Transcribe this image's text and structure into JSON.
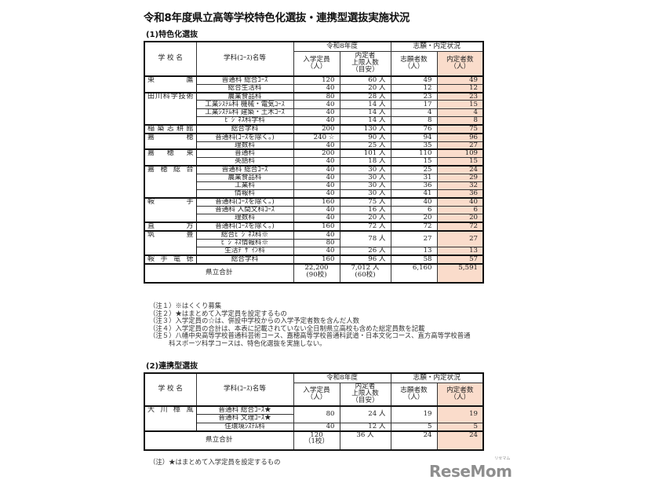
{
  "title": "令和8年度県立高等学校特色化選抜・連携型選抜実施状況",
  "colors": {
    "accepted_bg": "#fadccb",
    "logo": "#8e8e8e"
  },
  "headers": {
    "school": "学 校 名",
    "dept": "学科(ｺｰｽ)名等",
    "group_year": "令和8年度",
    "group_status": "志願・内定状況",
    "capacity": "入学定員\n（人）",
    "limit": "内定者\n上限人数\n（目安）",
    "applicants": "志願者数\n（人）",
    "accepted": "内定者数\n（人）"
  },
  "section1": {
    "heading": "(1)特色化選抜",
    "schools": [
      {
        "name": "東鷹",
        "rows": [
          {
            "dept": "普通科 総合ｺｰｽ",
            "capacity": "120",
            "limit": "60 人",
            "applicants": "49",
            "accepted": "49"
          },
          {
            "dept": "総合生活科",
            "capacity": "40",
            "limit": "20 人",
            "applicants": "12",
            "accepted": "12"
          }
        ]
      },
      {
        "name": "田川科学技術",
        "rows": [
          {
            "dept": "農業食品科",
            "capacity": "80",
            "limit": "28 人",
            "applicants": "23",
            "accepted": "23"
          },
          {
            "dept": "工業ｼｽﾃﾑ科 機械・電気ｺｰｽ",
            "capacity": "40",
            "limit": "14 人",
            "applicants": "17",
            "accepted": "15"
          },
          {
            "dept": "工業ｼｽﾃﾑ科 建築・土木ｺｰｽ",
            "capacity": "40",
            "limit": "14 人",
            "applicants": "4",
            "accepted": "4"
          },
          {
            "dept": "ﾋﾞｼﾞﾈｽ科学科",
            "capacity": "40",
            "limit": "14 人",
            "applicants": "8",
            "accepted": "8"
          }
        ]
      },
      {
        "name": "稲築志耕館",
        "rows": [
          {
            "dept": "総合学科",
            "capacity": "200",
            "limit": "130 人",
            "applicants": "76",
            "accepted": "75"
          }
        ]
      },
      {
        "name": "嘉穂",
        "rows": [
          {
            "dept": "普通科(ｺｰｽを除く。)",
            "capacity": "240 ☆",
            "limit": "90 人",
            "applicants": "94",
            "accepted": "96"
          },
          {
            "dept": "理数科",
            "capacity": "40",
            "limit": "25 人",
            "applicants": "35",
            "accepted": "27"
          }
        ]
      },
      {
        "name": "嘉穂東",
        "rows": [
          {
            "dept": "普通科",
            "capacity": "200",
            "limit": "101 人",
            "applicants": "110",
            "accepted": "109"
          },
          {
            "dept": "英語科",
            "capacity": "40",
            "limit": "18 人",
            "applicants": "15",
            "accepted": "15"
          }
        ]
      },
      {
        "name": "嘉穂総合",
        "rows": [
          {
            "dept": "普通科 総合ｺｰｽ",
            "capacity": "40",
            "limit": "30 人",
            "applicants": "25",
            "accepted": "24"
          },
          {
            "dept": "農業食品科",
            "capacity": "40",
            "limit": "30 人",
            "applicants": "31",
            "accepted": "29"
          },
          {
            "dept": "工業科",
            "capacity": "40",
            "limit": "30 人",
            "applicants": "36",
            "accepted": "32"
          },
          {
            "dept": "情報科",
            "capacity": "40",
            "limit": "30 人",
            "applicants": "41",
            "accepted": "36"
          }
        ]
      },
      {
        "name": "鞍手",
        "rows": [
          {
            "dept": "普通科(ｺｰｽを除く。)",
            "capacity": "160",
            "limit": "75 人",
            "applicants": "40",
            "accepted": "40"
          },
          {
            "dept": "普通科 人間文科ｺｰｽ",
            "capacity": "40",
            "limit": "16 人",
            "applicants": "6",
            "accepted": "6"
          },
          {
            "dept": "理数科",
            "capacity": "40",
            "limit": "20 人",
            "applicants": "20",
            "accepted": "20"
          }
        ]
      },
      {
        "name": "直方",
        "rows": [
          {
            "dept": "普通科(ｺｰｽを除く。)",
            "capacity": "160",
            "limit": "72 人",
            "applicants": "72",
            "accepted": "72"
          }
        ]
      },
      {
        "name": "筑豊",
        "rows": [
          {
            "dept": "総合ﾋﾞｼﾞﾈｽ科※",
            "capacity": "40",
            "limit": "78 人",
            "applicants": "27",
            "accepted": "27"
          },
          {
            "dept": "ﾋﾞｼﾞﾈｽ情報科※",
            "capacity": "80",
            "limit": null,
            "applicants": null,
            "accepted": null
          },
          {
            "dept": "生活ﾃﾞｻﾞｲﾝ科",
            "capacity": "40",
            "limit": "26 人",
            "applicants": "13",
            "accepted": "13"
          }
        ]
      },
      {
        "name": "鞍手竜徳",
        "rows": [
          {
            "dept": "総合学科",
            "capacity": "160",
            "limit": "96 人",
            "applicants": "58",
            "accepted": "57"
          }
        ]
      }
    ],
    "total": {
      "label": "県立合計",
      "capacity": "22,200\n(90校)",
      "limit": "7,012 人\n(60校)",
      "applicants": "6,160",
      "accepted": "5,591"
    },
    "notes": [
      "（注１）※はくくり募集",
      "（注２）★はまとめて入学定員を設定するもの",
      "（注３）入学定員の☆は、併設中学校からの入学予定者数を含んだ人数",
      "（注４）入学定員の合計は、本表に記載されていない全日制県立高校も含めた総定員数を記載",
      "（注５）八幡中央高等学校普通科芸術コース、嘉穂高等学校普通科武道・日本文化コース、直方高等学校普通",
      "　　　科スポーツ科学コースは、特色化選抜を実施しない。"
    ]
  },
  "section2": {
    "heading": "(2)連携型選抜",
    "schools": [
      {
        "name": "大川樟風",
        "rows": [
          {
            "dept": "普通科 総合ｺｰｽ★",
            "capacity": "80",
            "limit": "24 人",
            "applicants": "19",
            "accepted": "19"
          },
          {
            "dept": "普通科 文理ｺｰｽ★",
            "capacity": null,
            "limit": null,
            "applicants": null,
            "accepted": null
          },
          {
            "dept": "住環境ｼｽﾃﾑ科",
            "capacity": "40",
            "limit": "12 人",
            "applicants": "5",
            "accepted": "5"
          }
        ]
      }
    ],
    "total": {
      "label": "県立合計",
      "capacity": "120\n（1校）",
      "limit": "36 人",
      "applicants": "24",
      "accepted": "24"
    },
    "notes": [
      "（注）★はまとめて入学定員を設定するもの"
    ]
  },
  "logo": {
    "text": "ReseMom",
    "ruby": "リセマム"
  }
}
